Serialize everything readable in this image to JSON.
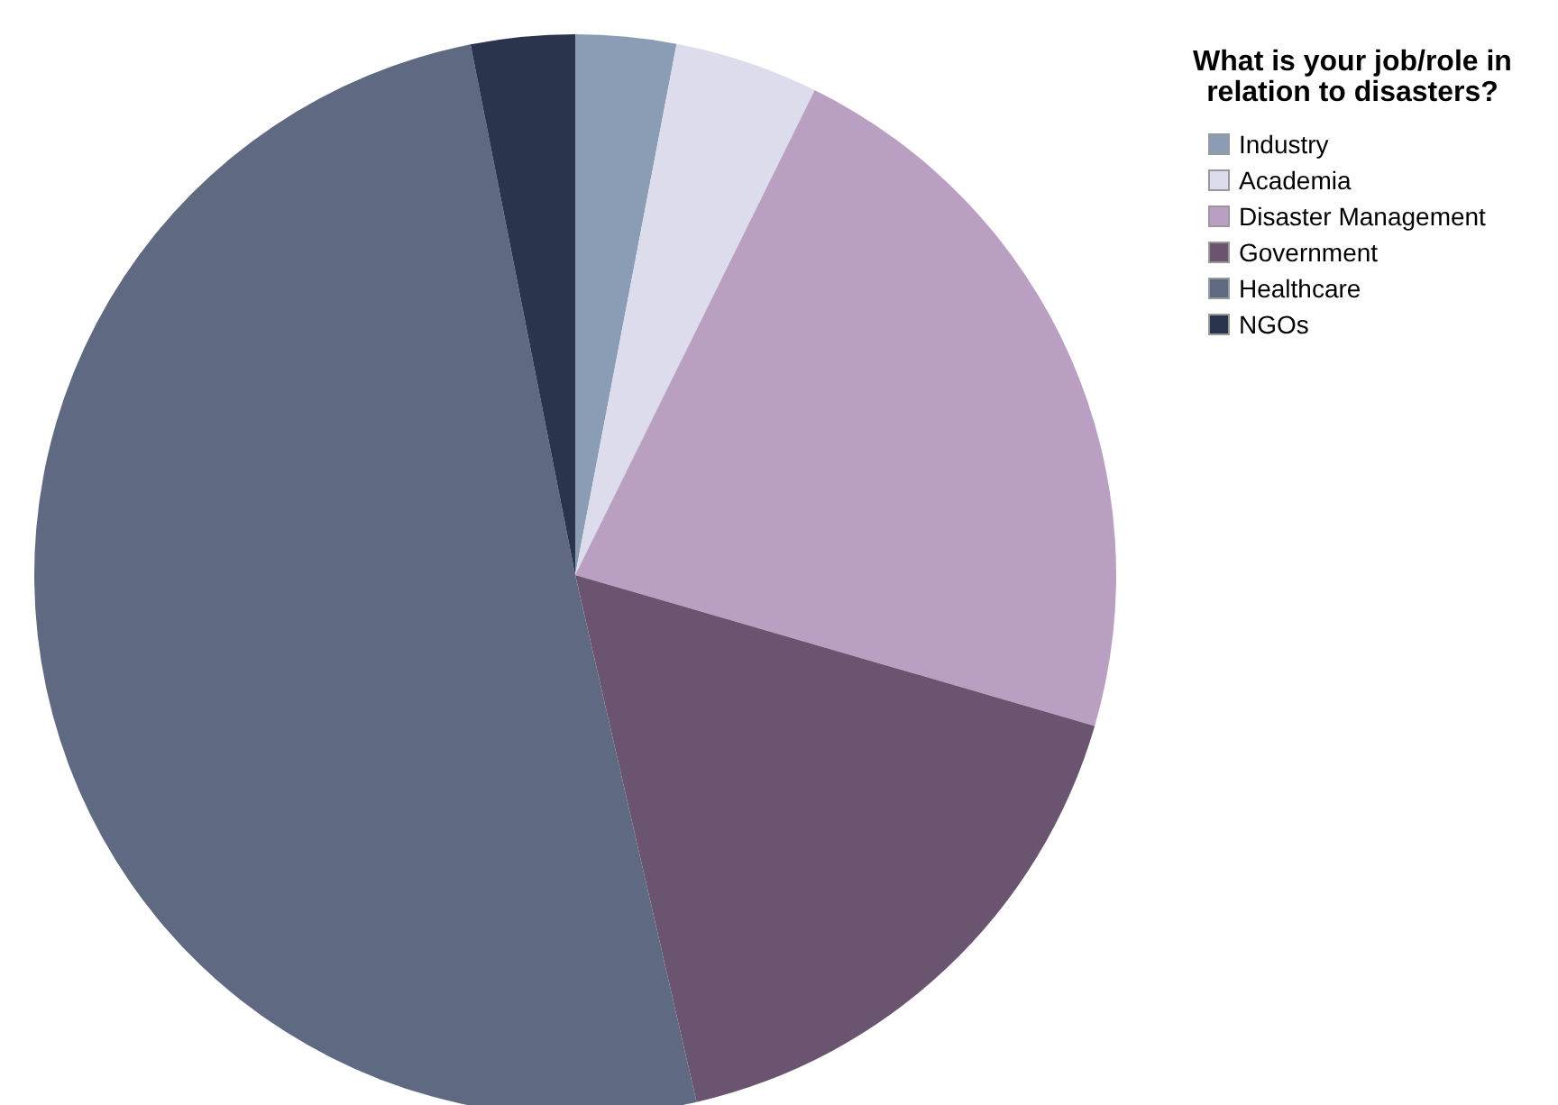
{
  "chart_data": {
    "type": "pie",
    "legend_title": "What is your job/role in relation to disasters?",
    "categories": [
      "Industry",
      "Academia",
      "Disaster Management",
      "Government",
      "Healthcare",
      "NGOs"
    ],
    "values": [
      3,
      4.3,
      22.2,
      16.9,
      50.5,
      3.1
    ],
    "colors": [
      "#8a9db5",
      "#dcdcec",
      "#b9a0c3",
      "#6b546f",
      "#5f6a82",
      "#2b344d"
    ],
    "legend": "top right"
  }
}
